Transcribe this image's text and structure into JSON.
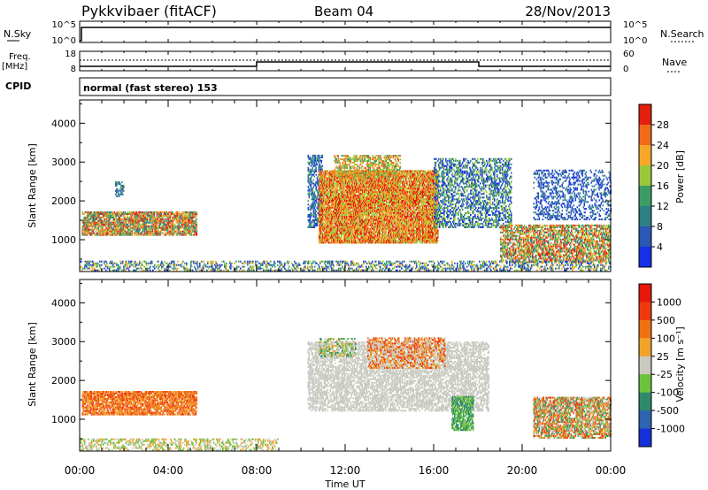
{
  "header": {
    "station": "Pykkvibaer (fitACF)",
    "beam": "Beam 04",
    "date": "28/Nov/2013"
  },
  "top_panels": {
    "nsky_label": "N.Sky",
    "nsearch_label": "N.Search",
    "nsky_ticks": [
      "10^5",
      "10^0"
    ],
    "freq_label": "Freq.",
    "freq_unit": "[MHz]",
    "freq_ticks": [
      "18",
      "8"
    ],
    "nave_label": "Nave",
    "nave_ticks": [
      "60",
      "0"
    ],
    "cpid_label": "CPID",
    "cpid_text": "normal (fast stereo) 153"
  },
  "time_axis": {
    "label": "Time UT",
    "ticks": [
      "00:00",
      "04:00",
      "08:00",
      "12:00",
      "16:00",
      "20:00",
      "00:00"
    ],
    "hours": [
      0,
      4,
      8,
      12,
      16,
      20,
      24
    ]
  },
  "chart_data": [
    {
      "type": "heatmap",
      "name": "power",
      "ylabel": "Slant Range [km]",
      "yticks": [
        1000,
        2000,
        3000,
        4000
      ],
      "ylim": [
        180,
        4600
      ],
      "xlim": [
        0,
        24
      ],
      "colorbar": {
        "label": "Power [dB]",
        "ticks": [
          "4",
          "8",
          "12",
          "16",
          "20",
          "24",
          "28"
        ],
        "colors": [
          "#1530e6",
          "#2a58b4",
          "#2f7f86",
          "#3c9c64",
          "#9ac83a",
          "#f6a628",
          "#f06a1a",
          "#e22010"
        ]
      }
    },
    {
      "type": "heatmap",
      "name": "velocity",
      "ylabel": "Slant Range [km]",
      "yticks": [
        1000,
        2000,
        3000,
        4000
      ],
      "ylim": [
        180,
        4600
      ],
      "xlim": [
        0,
        24
      ],
      "colorbar": {
        "label": "Velocity [m s⁻¹]",
        "ticks": [
          "1000",
          "500",
          "100",
          "25",
          "-25",
          "-100",
          "-500",
          "-1000"
        ],
        "colors": [
          "#1530d8",
          "#2c64b0",
          "#2f8a6a",
          "#6dc23c",
          "#c9c9c0",
          "#f0a22a",
          "#f07014",
          "#ee3a10",
          "#e6180c"
        ]
      }
    }
  ],
  "colors": {
    "frame": "#000000",
    "background": "#ffffff"
  }
}
